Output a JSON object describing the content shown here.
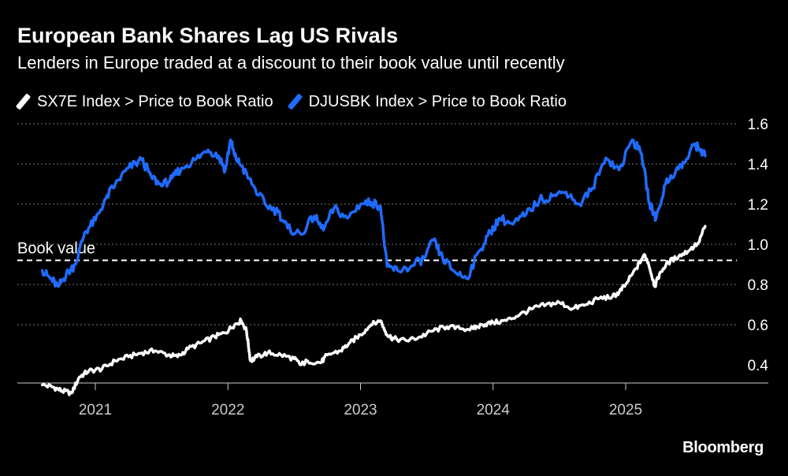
{
  "title": "European Bank Shares Lag US Rivals",
  "subtitle": "Lenders in Europe traded at a discount to their book value until recently",
  "brand": "Bloomberg",
  "colors": {
    "sx7e": "#ffffff",
    "djusbk": "#1f6bff",
    "background": "#000000",
    "grid": "#777777"
  },
  "chart_data": {
    "type": "line",
    "ylim": [
      0.25,
      1.6
    ],
    "yticks": [
      0.4,
      0.6,
      0.8,
      1.0,
      1.2,
      1.4,
      1.6
    ],
    "ytick_labels": [
      "0.4",
      "0.6",
      "0.8",
      "1.0",
      "1.2",
      "1.4",
      "1.6"
    ],
    "xlim": [
      2020.58,
      2025.75
    ],
    "xticks": [
      2021,
      2022,
      2023,
      2024,
      2025
    ],
    "xtick_labels": [
      "2021",
      "2022",
      "2023",
      "2024",
      "2025"
    ],
    "reference_line": {
      "label": "Book value",
      "value": 0.92
    },
    "series": [
      {
        "name": "SX7E Index > Price to Book Ratio",
        "color": "#ffffff",
        "points": [
          [
            2020.6,
            0.3
          ],
          [
            2020.68,
            0.29
          ],
          [
            2020.75,
            0.27
          ],
          [
            2020.82,
            0.26
          ],
          [
            2020.88,
            0.34
          ],
          [
            2020.95,
            0.37
          ],
          [
            2021.05,
            0.38
          ],
          [
            2021.15,
            0.42
          ],
          [
            2021.25,
            0.44
          ],
          [
            2021.35,
            0.46
          ],
          [
            2021.45,
            0.47
          ],
          [
            2021.55,
            0.45
          ],
          [
            2021.62,
            0.44
          ],
          [
            2021.7,
            0.48
          ],
          [
            2021.8,
            0.51
          ],
          [
            2021.9,
            0.54
          ],
          [
            2021.98,
            0.56
          ],
          [
            2022.05,
            0.6
          ],
          [
            2022.1,
            0.62
          ],
          [
            2022.14,
            0.57
          ],
          [
            2022.17,
            0.42
          ],
          [
            2022.22,
            0.44
          ],
          [
            2022.3,
            0.46
          ],
          [
            2022.4,
            0.45
          ],
          [
            2022.5,
            0.43
          ],
          [
            2022.55,
            0.4
          ],
          [
            2022.6,
            0.42
          ],
          [
            2022.7,
            0.41
          ],
          [
            2022.75,
            0.45
          ],
          [
            2022.85,
            0.47
          ],
          [
            2022.92,
            0.51
          ],
          [
            2023.0,
            0.55
          ],
          [
            2023.08,
            0.6
          ],
          [
            2023.15,
            0.62
          ],
          [
            2023.2,
            0.55
          ],
          [
            2023.25,
            0.53
          ],
          [
            2023.35,
            0.52
          ],
          [
            2023.45,
            0.54
          ],
          [
            2023.55,
            0.57
          ],
          [
            2023.65,
            0.59
          ],
          [
            2023.75,
            0.58
          ],
          [
            2023.85,
            0.58
          ],
          [
            2023.92,
            0.6
          ],
          [
            2024.0,
            0.61
          ],
          [
            2024.1,
            0.62
          ],
          [
            2024.2,
            0.65
          ],
          [
            2024.3,
            0.68
          ],
          [
            2024.4,
            0.7
          ],
          [
            2024.5,
            0.71
          ],
          [
            2024.6,
            0.68
          ],
          [
            2024.7,
            0.7
          ],
          [
            2024.8,
            0.73
          ],
          [
            2024.9,
            0.74
          ],
          [
            2024.95,
            0.76
          ],
          [
            2025.0,
            0.8
          ],
          [
            2025.08,
            0.88
          ],
          [
            2025.14,
            0.95
          ],
          [
            2025.17,
            0.91
          ],
          [
            2025.22,
            0.79
          ],
          [
            2025.26,
            0.86
          ],
          [
            2025.32,
            0.91
          ],
          [
            2025.4,
            0.94
          ],
          [
            2025.48,
            0.97
          ],
          [
            2025.55,
            1.01
          ],
          [
            2025.6,
            1.09
          ]
        ]
      },
      {
        "name": "DJUSBK Index > Price to Book Ratio",
        "color": "#1f6bff",
        "points": [
          [
            2020.6,
            0.87
          ],
          [
            2020.66,
            0.83
          ],
          [
            2020.72,
            0.79
          ],
          [
            2020.78,
            0.85
          ],
          [
            2020.85,
            0.9
          ],
          [
            2020.92,
            1.06
          ],
          [
            2021.0,
            1.12
          ],
          [
            2021.08,
            1.23
          ],
          [
            2021.15,
            1.3
          ],
          [
            2021.25,
            1.38
          ],
          [
            2021.35,
            1.42
          ],
          [
            2021.42,
            1.34
          ],
          [
            2021.5,
            1.29
          ],
          [
            2021.58,
            1.33
          ],
          [
            2021.65,
            1.38
          ],
          [
            2021.75,
            1.42
          ],
          [
            2021.85,
            1.47
          ],
          [
            2021.93,
            1.44
          ],
          [
            2021.98,
            1.37
          ],
          [
            2022.02,
            1.52
          ],
          [
            2022.05,
            1.44
          ],
          [
            2022.1,
            1.39
          ],
          [
            2022.18,
            1.3
          ],
          [
            2022.28,
            1.2
          ],
          [
            2022.38,
            1.16
          ],
          [
            2022.45,
            1.08
          ],
          [
            2022.55,
            1.05
          ],
          [
            2022.65,
            1.14
          ],
          [
            2022.72,
            1.07
          ],
          [
            2022.8,
            1.18
          ],
          [
            2022.9,
            1.13
          ],
          [
            2023.0,
            1.2
          ],
          [
            2023.08,
            1.21
          ],
          [
            2023.15,
            1.19
          ],
          [
            2023.2,
            0.89
          ],
          [
            2023.28,
            0.87
          ],
          [
            2023.38,
            0.89
          ],
          [
            2023.48,
            0.93
          ],
          [
            2023.55,
            1.02
          ],
          [
            2023.62,
            0.93
          ],
          [
            2023.7,
            0.87
          ],
          [
            2023.8,
            0.83
          ],
          [
            2023.9,
            0.97
          ],
          [
            2023.98,
            1.06
          ],
          [
            2024.05,
            1.13
          ],
          [
            2024.15,
            1.1
          ],
          [
            2024.25,
            1.15
          ],
          [
            2024.35,
            1.22
          ],
          [
            2024.45,
            1.24
          ],
          [
            2024.55,
            1.26
          ],
          [
            2024.65,
            1.2
          ],
          [
            2024.75,
            1.28
          ],
          [
            2024.85,
            1.43
          ],
          [
            2024.95,
            1.37
          ],
          [
            2025.05,
            1.52
          ],
          [
            2025.12,
            1.45
          ],
          [
            2025.18,
            1.2
          ],
          [
            2025.23,
            1.13
          ],
          [
            2025.3,
            1.3
          ],
          [
            2025.38,
            1.37
          ],
          [
            2025.45,
            1.41
          ],
          [
            2025.52,
            1.5
          ],
          [
            2025.56,
            1.47
          ],
          [
            2025.6,
            1.44
          ]
        ]
      }
    ]
  }
}
